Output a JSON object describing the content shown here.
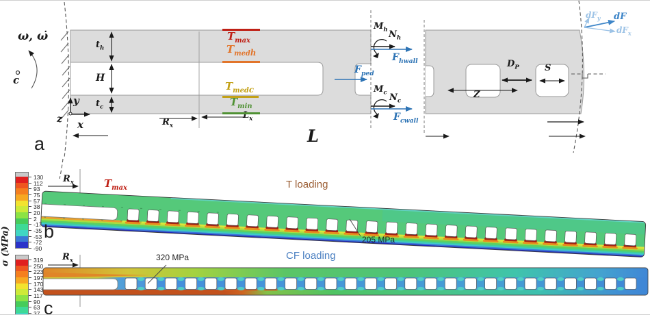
{
  "figure": {
    "panel_a": {
      "tag": "a",
      "omega": "ω, ω̇",
      "center_c": "c",
      "axis_x": "x",
      "axis_y": "y",
      "axis_z": "z",
      "dim_th": {
        "base": "t",
        "sub": "h"
      },
      "dim_H": "H",
      "dim_tc": {
        "base": "t",
        "sub": "c"
      },
      "dim_Rx": {
        "base": "R",
        "sub": "x"
      },
      "dim_Lx": {
        "base": "L",
        "sub": "x"
      },
      "dim_L": "L",
      "dim_Z": "Z",
      "dim_DP": {
        "base": "D",
        "sub": "P"
      },
      "dim_S": "S",
      "temp_max": {
        "base": "T",
        "sub": "max",
        "color": "#bf2015"
      },
      "temp_med_h": {
        "base": "T",
        "sub": "med",
        "subsub": "h",
        "color": "#e2752b"
      },
      "temp_med_c": {
        "base": "T",
        "sub": "med",
        "subsub": "c",
        "color": "#c3a117"
      },
      "temp_min": {
        "base": "T",
        "sub": "min",
        "color": "#4f9133"
      },
      "force_Mh": {
        "base": "M",
        "sub": "h"
      },
      "force_Nh": {
        "base": "N",
        "sub": "h"
      },
      "force_Fhwall": {
        "base": "F",
        "sub": "hwall",
        "color": "#2e74b5"
      },
      "force_Fped": {
        "base": "F",
        "sub": "ped",
        "color": "#2e74b5"
      },
      "force_Mc": {
        "base": "M",
        "sub": "c"
      },
      "force_Nc": {
        "base": "N",
        "sub": "c"
      },
      "force_Fcwall": {
        "base": "F",
        "sub": "cwall",
        "color": "#2e74b5"
      },
      "force_dFy": {
        "base": "dF",
        "sub": "y",
        "color": "#9dc3e6"
      },
      "force_dF": {
        "base": "dF",
        "sub": "",
        "color": "#3d85c8"
      },
      "force_dFx": {
        "base": "dF",
        "sub": "x",
        "color": "#9dc3e6"
      }
    },
    "colorbar_axis_label": "σ (MPa)",
    "colorbar_b": {
      "ticks": [
        "130",
        "112",
        "93",
        "75",
        "57",
        "38",
        "20",
        "2",
        "-17",
        "-35",
        "-53",
        "-72",
        "-90"
      ],
      "band_colors": [
        "#c9c9c9",
        "#e01f1f",
        "#ee5620",
        "#f57f1f",
        "#f7a822",
        "#f2e32f",
        "#cdea38",
        "#8ce344",
        "#46cc5a",
        "#3fd996",
        "#40d6c3",
        "#3a78d6",
        "#2b33c9"
      ]
    },
    "colorbar_c": {
      "ticks": [
        "319",
        "250",
        "223",
        "197",
        "170",
        "143",
        "117",
        "90",
        "63",
        "37"
      ],
      "band_colors": [
        "#c9c9c9",
        "#e01f1f",
        "#ee5620",
        "#f57f1f",
        "#f7a822",
        "#f2e32f",
        "#cdea38",
        "#8ce344",
        "#46cc5a",
        "#3fd996",
        "#40d6c3"
      ]
    },
    "panel_b": {
      "tag": "b",
      "rx": {
        "base": "R",
        "sub": "x"
      },
      "tmax": {
        "base": "T",
        "sub": "max",
        "color": "#bf2015"
      },
      "title": "T loading",
      "title_color": "#9a5c32",
      "annotation": "205 MPa"
    },
    "panel_c": {
      "tag": "c",
      "rx": {
        "base": "R",
        "sub": "x"
      },
      "title": "CF loading",
      "title_color": "#4a7fc1",
      "annotation": "320 MPa"
    }
  }
}
